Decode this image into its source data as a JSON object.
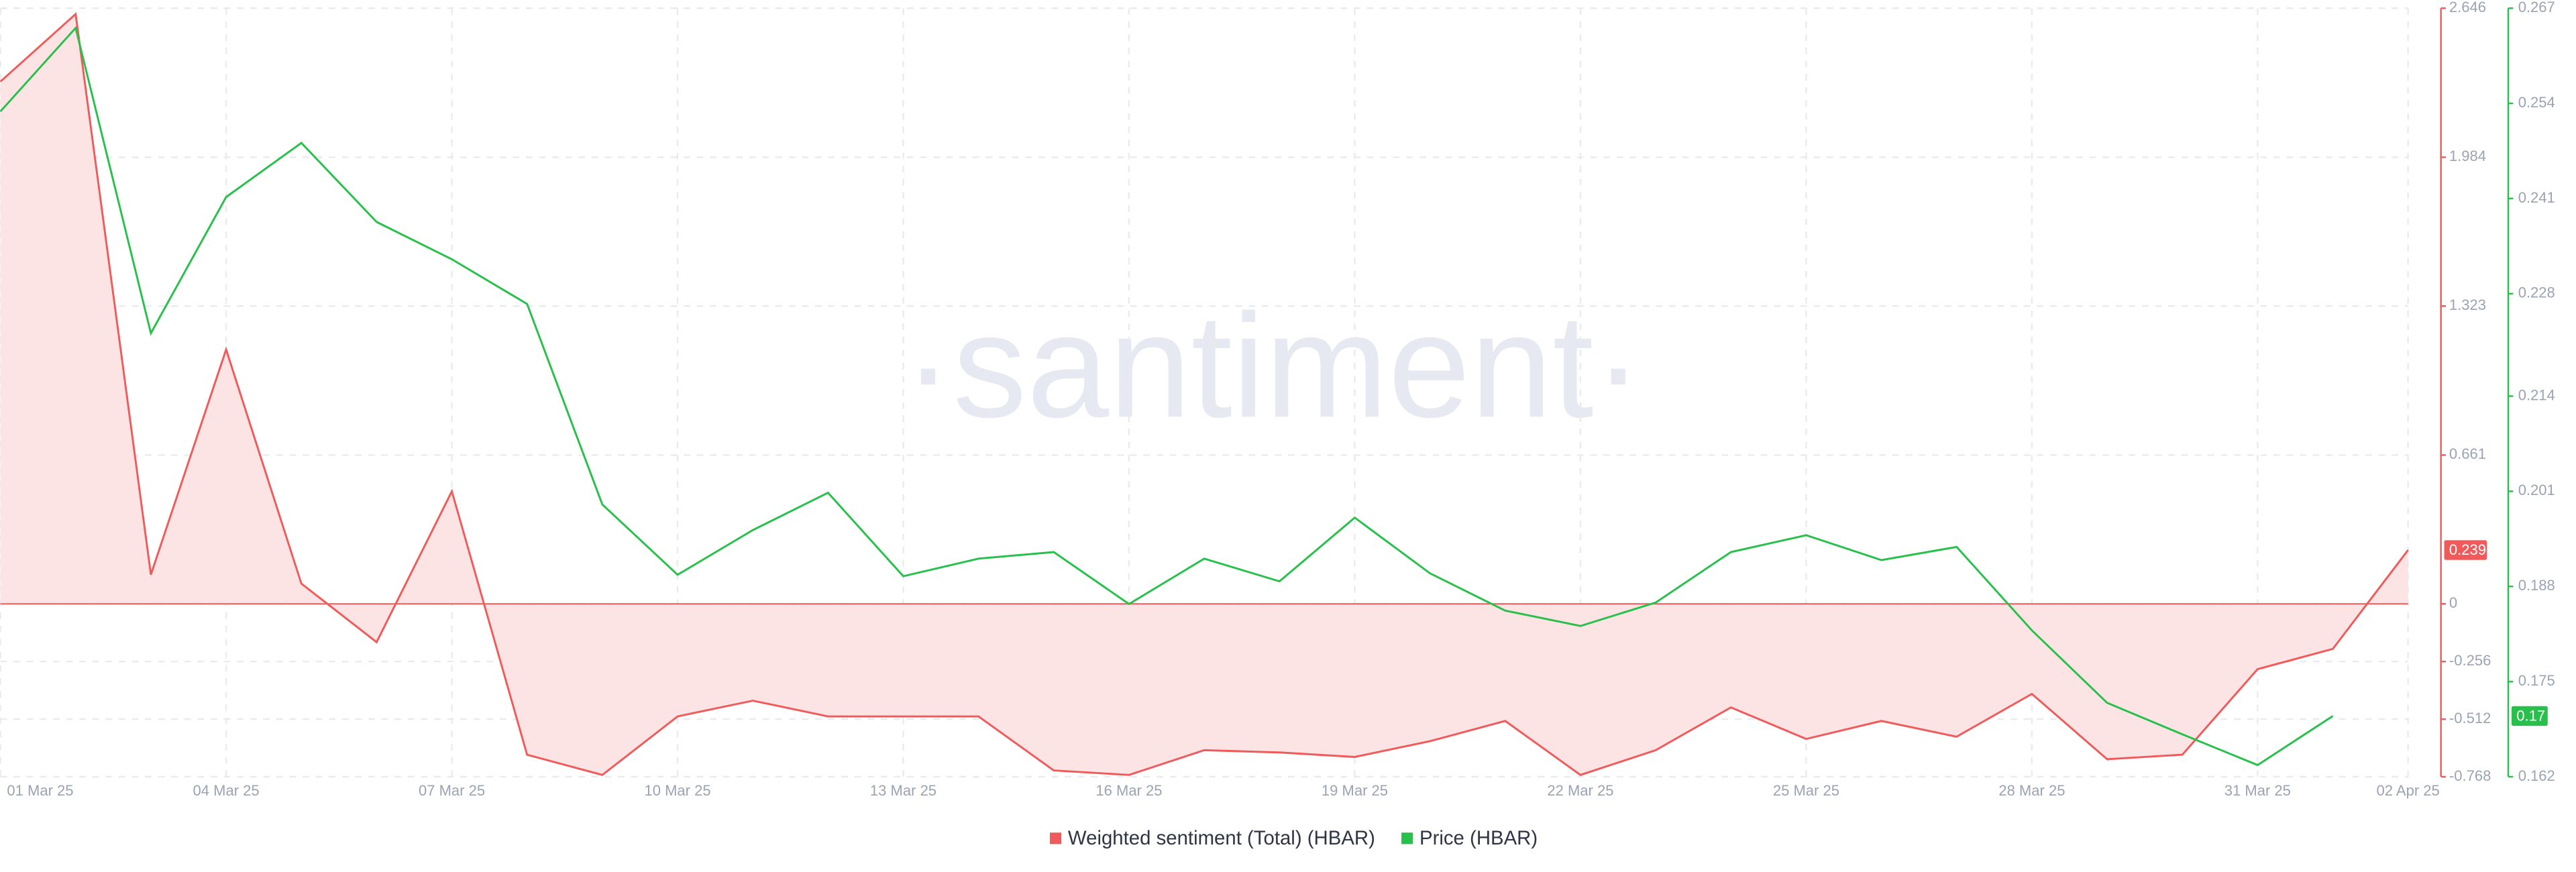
{
  "chart_data": {
    "type": "line",
    "watermark": "·santiment·",
    "categories": [
      "01 Mar 25",
      null,
      null,
      "04 Mar 25",
      null,
      null,
      "07 Mar 25",
      null,
      null,
      "10 Mar 25",
      null,
      null,
      "13 Mar 25",
      null,
      null,
      "16 Mar 25",
      null,
      null,
      "19 Mar 25",
      null,
      null,
      "22 Mar 25",
      null,
      null,
      "25 Mar 25",
      null,
      null,
      "28 Mar 25",
      null,
      null,
      "31 Mar 25",
      null,
      "02 Apr 25"
    ],
    "series": [
      {
        "name": "Weighted sentiment (Total) (HBAR)",
        "color": "#f05a5a",
        "fill": "#fde4e4",
        "axis": "y",
        "values": [
          2.32,
          2.62,
          0.13,
          1.13,
          0.09,
          -0.17,
          0.5,
          -0.67,
          -0.76,
          -0.5,
          -0.43,
          -0.5,
          -0.5,
          -0.5,
          -0.74,
          -0.76,
          -0.65,
          -0.66,
          -0.68,
          -0.61,
          -0.52,
          -0.76,
          -0.65,
          -0.46,
          -0.6,
          -0.52,
          -0.59,
          -0.4,
          -0.69,
          -0.67,
          -0.29,
          -0.2,
          0.239
        ],
        "last_label": "0.239"
      },
      {
        "name": "Price (HBAR)",
        "color": "#26c04a",
        "axis": "y2",
        "values": [
          0.2529,
          0.2643,
          0.2226,
          0.2412,
          0.2486,
          0.2378,
          0.2327,
          0.2266,
          0.1992,
          0.1896,
          0.1957,
          0.2008,
          0.1894,
          0.1918,
          0.1927,
          0.1856,
          0.1918,
          0.1887,
          0.1974,
          0.1898,
          0.1847,
          0.1826,
          0.1858,
          0.1927,
          0.195,
          0.1916,
          0.1934,
          0.182,
          0.1721,
          0.1678,
          0.1636,
          0.1703,
          null
        ],
        "last_label": "0.17"
      }
    ],
    "ylim": [
      -0.768,
      2.646
    ],
    "yticks": [
      2.646,
      1.984,
      1.323,
      0.661,
      0,
      -0.256,
      -0.512,
      -0.768
    ],
    "y2lim": [
      0.162,
      0.267
    ],
    "y2ticks": [
      0.267,
      0.254,
      0.241,
      0.228,
      0.214,
      0.201,
      0.188,
      0.175,
      0.162
    ],
    "grid": true
  }
}
